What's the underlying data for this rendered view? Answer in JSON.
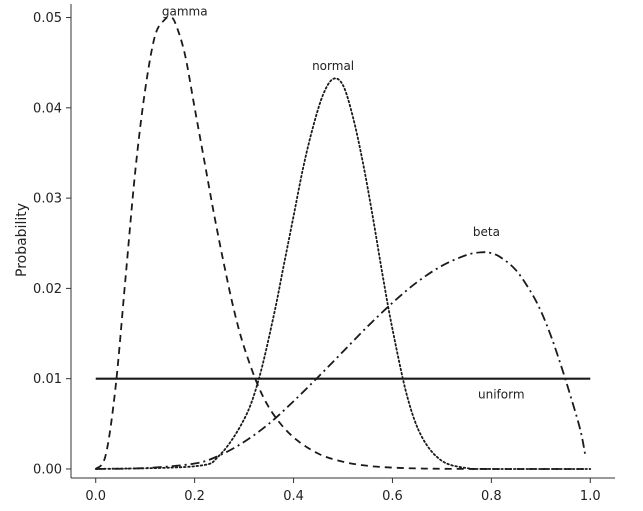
{
  "chart_data": {
    "type": "line",
    "title": "",
    "xlabel": "",
    "ylabel": "Probability",
    "xlim": [
      -0.05,
      1.05
    ],
    "ylim": [
      -0.001,
      0.0515
    ],
    "grid": false,
    "legend": "none",
    "xticks": [
      0.0,
      0.2,
      0.4,
      0.6,
      0.8,
      1.0
    ],
    "xtick_labels": [
      "0.0",
      "0.2",
      "0.4",
      "0.6",
      "0.8",
      "1.0"
    ],
    "yticks": [
      0.0,
      0.01,
      0.02,
      0.03,
      0.04,
      0.05
    ],
    "ytick_labels": [
      "0.00",
      "0.01",
      "0.02",
      "0.03",
      "0.04",
      "0.05"
    ],
    "series": [
      {
        "name": "gamma",
        "dash": "dashed",
        "x": [
          0.0,
          0.02,
          0.04,
          0.06,
          0.08,
          0.1,
          0.12,
          0.14,
          0.15,
          0.16,
          0.18,
          0.2,
          0.22,
          0.24,
          0.26,
          0.28,
          0.3,
          0.33,
          0.36,
          0.4,
          0.45,
          0.5,
          0.55,
          0.6,
          0.65,
          0.7,
          0.8,
          0.9,
          1.0
        ],
        "y": [
          0.0,
          0.0015,
          0.009,
          0.021,
          0.033,
          0.042,
          0.048,
          0.0498,
          0.05,
          0.0495,
          0.046,
          0.04,
          0.034,
          0.028,
          0.0225,
          0.0175,
          0.0135,
          0.009,
          0.006,
          0.0035,
          0.0017,
          0.0008,
          0.00035,
          0.00015,
          6e-05,
          2e-05,
          0.0,
          0.0,
          0.0
        ]
      },
      {
        "name": "normal",
        "dash": "dotted",
        "x": [
          0.0,
          0.2,
          0.25,
          0.3,
          0.33,
          0.36,
          0.38,
          0.4,
          0.42,
          0.44,
          0.46,
          0.48,
          0.5,
          0.52,
          0.54,
          0.56,
          0.58,
          0.6,
          0.63,
          0.66,
          0.7,
          0.75,
          0.8,
          1.0
        ],
        "y": [
          0.0,
          0.0003,
          0.0015,
          0.0055,
          0.01,
          0.017,
          0.0225,
          0.028,
          0.0335,
          0.038,
          0.0415,
          0.0432,
          0.0425,
          0.039,
          0.034,
          0.028,
          0.0215,
          0.0155,
          0.008,
          0.0035,
          0.0009,
          0.0001,
          0.0,
          0.0
        ]
      },
      {
        "name": "beta",
        "dash": "dashdot",
        "x": [
          0.0,
          0.1,
          0.2,
          0.25,
          0.3,
          0.35,
          0.4,
          0.45,
          0.5,
          0.55,
          0.6,
          0.65,
          0.7,
          0.75,
          0.78,
          0.8,
          0.82,
          0.85,
          0.88,
          0.9,
          0.92,
          0.94,
          0.96,
          0.98,
          0.99
        ],
        "y": [
          0.0,
          0.0001,
          0.0006,
          0.0015,
          0.003,
          0.005,
          0.0075,
          0.0102,
          0.013,
          0.0158,
          0.0184,
          0.0207,
          0.0225,
          0.0237,
          0.024,
          0.0239,
          0.0234,
          0.022,
          0.0196,
          0.0175,
          0.0148,
          0.0116,
          0.0081,
          0.0043,
          0.0015
        ]
      },
      {
        "name": "uniform",
        "dash": "solid",
        "x": [
          0.0,
          1.0
        ],
        "y": [
          0.01,
          0.01
        ]
      }
    ],
    "annotations": [
      {
        "text": "gamma",
        "x": 0.18,
        "y": 0.0502
      },
      {
        "text": "normal",
        "x": 0.48,
        "y": 0.0442
      },
      {
        "text": "beta",
        "x": 0.79,
        "y": 0.0258
      },
      {
        "text": "uniform",
        "x": 0.82,
        "y": 0.0078
      }
    ]
  }
}
